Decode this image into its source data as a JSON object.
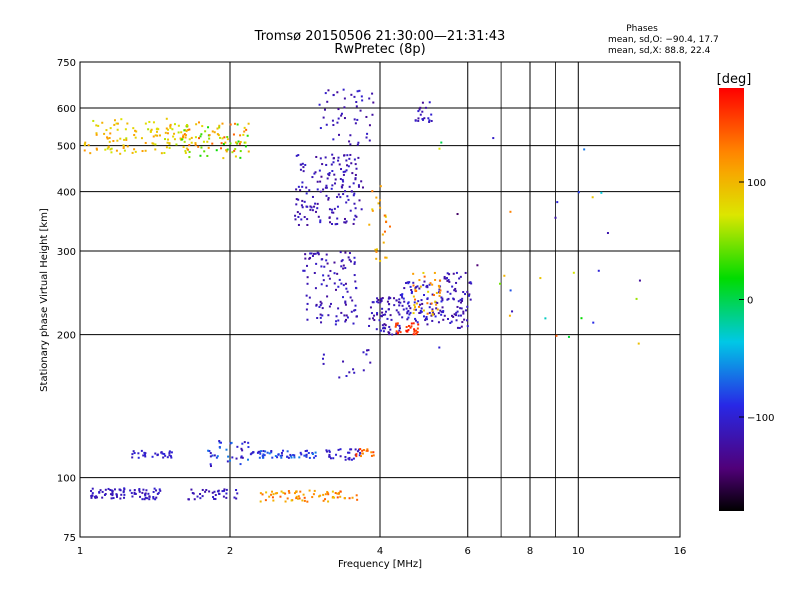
{
  "chart_data": {
    "type": "scatter",
    "title": "Tromsø 20150506 21:30:00—21:31:43",
    "subtitle": "RwPretec (8p)",
    "xlabel": "Frequency [MHz]",
    "ylabel": "Stationary phase Virtual Height [km]",
    "x_scale": "log",
    "y_scale": "log",
    "xlim": [
      1,
      16
    ],
    "ylim": [
      75,
      750
    ],
    "x_ticks": [
      1,
      2,
      4,
      6,
      8,
      10,
      16
    ],
    "x_minor_lines": [
      7,
      9
    ],
    "y_ticks": [
      75,
      100,
      200,
      300,
      400,
      500,
      600,
      750
    ],
    "grid": true,
    "stats": {
      "header": "Phases",
      "line_o": "mean, sd,O: −90.4, 17.7",
      "line_x": "mean, sd,X:  88.8, 22.4"
    },
    "colorbar": {
      "label": "[deg]",
      "range": [
        -180,
        180
      ],
      "ticks": [
        100,
        0,
        -100
      ]
    },
    "clusters": [
      {
        "x": [
          1.02,
          1.65
        ],
        "y": [
          480,
          570
        ],
        "phase": [
          60,
          120
        ],
        "n": 120
      },
      {
        "x": [
          1.05,
          1.45
        ],
        "y": [
          90,
          95
        ],
        "phase": [
          -120,
          -100
        ],
        "n": 80
      },
      {
        "x": [
          1.25,
          1.55
        ],
        "y": [
          110,
          114
        ],
        "phase": [
          -115,
          -95
        ],
        "n": 30
      },
      {
        "x": [
          1.65,
          2.1
        ],
        "y": [
          90,
          95
        ],
        "phase": [
          -120,
          -100
        ],
        "n": 35
      },
      {
        "x": [
          1.6,
          2.2
        ],
        "y": [
          470,
          560
        ],
        "phase": [
          20,
          150
        ],
        "n": 90
      },
      {
        "x": [
          1.8,
          2.2
        ],
        "y": [
          105,
          120
        ],
        "phase": [
          -120,
          -60
        ],
        "n": 35
      },
      {
        "x": [
          2.2,
          3.0
        ],
        "y": [
          110,
          114
        ],
        "phase": [
          -110,
          -60
        ],
        "n": 60
      },
      {
        "x": [
          2.3,
          3.6
        ],
        "y": [
          89,
          94
        ],
        "phase": [
          90,
          150
        ],
        "n": 70
      },
      {
        "x": [
          3.1,
          3.65
        ],
        "y": [
          109,
          115
        ],
        "phase": [
          -115,
          -95
        ],
        "n": 30
      },
      {
        "x": [
          3.55,
          3.9
        ],
        "y": [
          111,
          115
        ],
        "phase": [
          120,
          160
        ],
        "n": 15
      },
      {
        "x": [
          2.7,
          3.7
        ],
        "y": [
          340,
          480
        ],
        "phase": [
          -130,
          -100
        ],
        "n": 160
      },
      {
        "x": [
          2.8,
          3.6
        ],
        "y": [
          210,
          300
        ],
        "phase": [
          -130,
          -100
        ],
        "n": 110
      },
      {
        "x": [
          3.0,
          3.9
        ],
        "y": [
          150,
          190
        ],
        "phase": [
          -120,
          -100
        ],
        "n": 15
      },
      {
        "x": [
          3.0,
          3.9
        ],
        "y": [
          500,
          660
        ],
        "phase": [
          -130,
          -100
        ],
        "n": 50
      },
      {
        "x": [
          3.8,
          4.4
        ],
        "y": [
          200,
          240
        ],
        "phase": [
          -130,
          -100
        ],
        "n": 70
      },
      {
        "x": [
          3.8,
          4.2
        ],
        "y": [
          280,
          420
        ],
        "phase": [
          80,
          140
        ],
        "n": 25
      },
      {
        "x": [
          4.3,
          4.8
        ],
        "y": [
          200,
          212
        ],
        "phase": [
          150,
          175
        ],
        "n": 30
      },
      {
        "x": [
          4.4,
          5.4
        ],
        "y": [
          210,
          260
        ],
        "phase": [
          -130,
          -90
        ],
        "n": 90
      },
      {
        "x": [
          4.6,
          5.3
        ],
        "y": [
          220,
          270
        ],
        "phase": [
          80,
          140
        ],
        "n": 40
      },
      {
        "x": [
          5.3,
          6.1
        ],
        "y": [
          205,
          270
        ],
        "phase": [
          -130,
          -100
        ],
        "n": 70
      },
      {
        "x": [
          4.7,
          5.1
        ],
        "y": [
          560,
          620
        ],
        "phase": [
          -130,
          -100
        ],
        "n": 20
      },
      {
        "x": [
          5.0,
          14.0
        ],
        "y": [
          160,
          600
        ],
        "phase": [
          -150,
          150
        ],
        "n": 30
      }
    ]
  }
}
